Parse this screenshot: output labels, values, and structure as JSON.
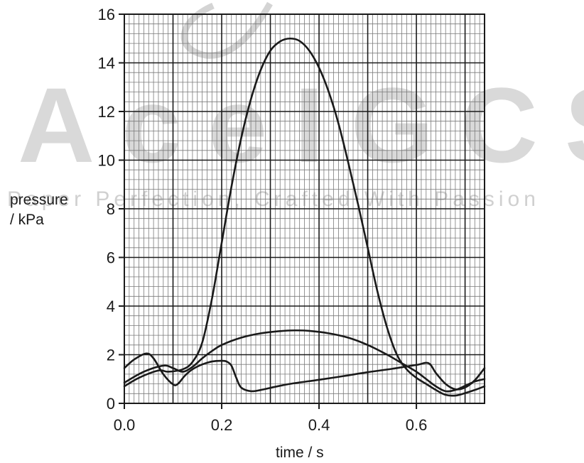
{
  "watermark": {
    "main": "AceIGCSE",
    "tagline": "Paper Perfection, Crafted With Passion"
  },
  "chart_data": {
    "type": "line",
    "xlabel": "time / s",
    "ylabel_line1": "pressure",
    "ylabel_line2": "/ kPa",
    "xlim": [
      0,
      0.74
    ],
    "ylim": [
      0,
      16
    ],
    "x_ticks": [
      0.0,
      0.2,
      0.4,
      0.6
    ],
    "x_tick_labels": [
      "0.0",
      "0.2",
      "0.4",
      "0.6"
    ],
    "y_ticks": [
      0,
      2,
      4,
      6,
      8,
      10,
      12,
      14,
      16
    ],
    "y_tick_labels": [
      "0",
      "2",
      "4",
      "6",
      "8",
      "10",
      "12",
      "14",
      "16"
    ],
    "grid": true,
    "series": [
      {
        "points": [
          [
            0,
            0.7
          ],
          [
            0.03,
            1.05
          ],
          [
            0.07,
            1.35
          ],
          [
            0.09,
            1.3
          ],
          [
            0.12,
            1.4
          ],
          [
            0.14,
            1.7
          ],
          [
            0.16,
            2.5
          ],
          [
            0.18,
            4.3
          ],
          [
            0.2,
            6.6
          ],
          [
            0.22,
            8.9
          ],
          [
            0.24,
            10.9
          ],
          [
            0.26,
            12.5
          ],
          [
            0.28,
            13.7
          ],
          [
            0.3,
            14.5
          ],
          [
            0.32,
            14.88
          ],
          [
            0.34,
            15.0
          ],
          [
            0.36,
            14.9
          ],
          [
            0.38,
            14.5
          ],
          [
            0.4,
            13.8
          ],
          [
            0.42,
            12.8
          ],
          [
            0.44,
            11.5
          ],
          [
            0.46,
            9.9
          ],
          [
            0.48,
            8.2
          ],
          [
            0.5,
            6.4
          ],
          [
            0.52,
            4.6
          ],
          [
            0.54,
            3.1
          ],
          [
            0.56,
            2.0
          ],
          [
            0.58,
            1.4
          ],
          [
            0.6,
            1.05
          ],
          [
            0.62,
            0.8
          ],
          [
            0.64,
            0.55
          ],
          [
            0.66,
            0.35
          ],
          [
            0.68,
            0.32
          ],
          [
            0.7,
            0.42
          ],
          [
            0.72,
            0.55
          ],
          [
            0.74,
            0.7
          ]
        ]
      },
      {
        "points": [
          [
            0,
            0.85
          ],
          [
            0.04,
            1.3
          ],
          [
            0.08,
            1.55
          ],
          [
            0.1,
            1.45
          ],
          [
            0.12,
            1.3
          ],
          [
            0.14,
            1.5
          ],
          [
            0.16,
            1.85
          ],
          [
            0.18,
            2.15
          ],
          [
            0.2,
            2.4
          ],
          [
            0.24,
            2.7
          ],
          [
            0.28,
            2.88
          ],
          [
            0.32,
            2.97
          ],
          [
            0.35,
            3.0
          ],
          [
            0.38,
            2.98
          ],
          [
            0.42,
            2.88
          ],
          [
            0.46,
            2.7
          ],
          [
            0.5,
            2.4
          ],
          [
            0.54,
            2.0
          ],
          [
            0.57,
            1.65
          ],
          [
            0.6,
            1.3
          ],
          [
            0.62,
            1.0
          ],
          [
            0.64,
            0.7
          ],
          [
            0.66,
            0.5
          ],
          [
            0.68,
            0.55
          ],
          [
            0.7,
            0.72
          ],
          [
            0.72,
            0.9
          ],
          [
            0.74,
            1.0
          ]
        ]
      },
      {
        "points": [
          [
            0,
            1.45
          ],
          [
            0.02,
            1.8
          ],
          [
            0.045,
            2.05
          ],
          [
            0.06,
            1.85
          ],
          [
            0.08,
            1.2
          ],
          [
            0.1,
            0.78
          ],
          [
            0.11,
            0.8
          ],
          [
            0.125,
            1.15
          ],
          [
            0.14,
            1.4
          ],
          [
            0.16,
            1.6
          ],
          [
            0.18,
            1.72
          ],
          [
            0.2,
            1.75
          ],
          [
            0.21,
            1.72
          ],
          [
            0.22,
            1.55
          ],
          [
            0.23,
            1.05
          ],
          [
            0.24,
            0.65
          ],
          [
            0.26,
            0.5
          ],
          [
            0.28,
            0.55
          ],
          [
            0.31,
            0.68
          ],
          [
            0.34,
            0.8
          ],
          [
            0.4,
            0.97
          ],
          [
            0.45,
            1.12
          ],
          [
            0.5,
            1.28
          ],
          [
            0.55,
            1.42
          ],
          [
            0.6,
            1.58
          ],
          [
            0.625,
            1.65
          ],
          [
            0.64,
            1.25
          ],
          [
            0.66,
            0.8
          ],
          [
            0.68,
            0.58
          ],
          [
            0.7,
            0.65
          ],
          [
            0.72,
            0.95
          ],
          [
            0.74,
            1.45
          ]
        ]
      }
    ]
  }
}
